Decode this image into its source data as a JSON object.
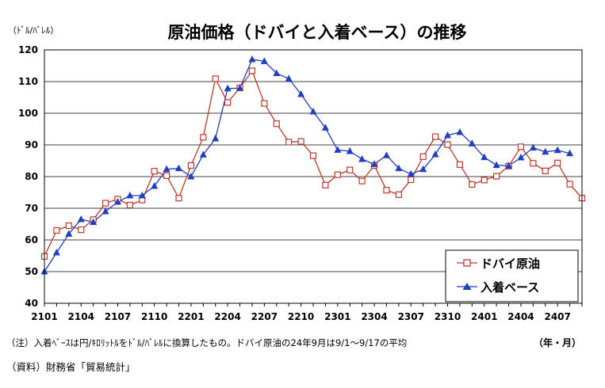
{
  "chart_data": {
    "type": "line",
    "title": "原油価格（ドバイと入着ベース）の推移",
    "ylabel": "（ﾄﾞﾙ/ﾊﾞﾚﾙ）",
    "xlabel": "（年・月）",
    "ylim": [
      40,
      120
    ],
    "yticks": [
      40,
      50,
      60,
      70,
      80,
      90,
      100,
      110,
      120
    ],
    "grid": true,
    "legend_position": "bottom-right",
    "x": [
      "2101",
      "2102",
      "2103",
      "2104",
      "2105",
      "2106",
      "2107",
      "2108",
      "2109",
      "2110",
      "2111",
      "2112",
      "2201",
      "2202",
      "2203",
      "2204",
      "2205",
      "2206",
      "2207",
      "2208",
      "2209",
      "2210",
      "2211",
      "2212",
      "2301",
      "2302",
      "2303",
      "2304",
      "2305",
      "2306",
      "2307",
      "2308",
      "2309",
      "2310",
      "2311",
      "2312",
      "2401",
      "2402",
      "2403",
      "2404",
      "2405",
      "2406",
      "2407",
      "2408",
      "2409"
    ],
    "xtick_labels": [
      "2101",
      "2104",
      "2107",
      "2110",
      "2201",
      "2204",
      "2207",
      "2210",
      "2301",
      "2304",
      "2307",
      "2310",
      "2401",
      "2404",
      "2407"
    ],
    "series": [
      {
        "name": "ドバイ原油",
        "color": "#c0392b",
        "marker": "square-open",
        "values": [
          54.8,
          63.0,
          64.5,
          63.2,
          66.4,
          71.6,
          72.9,
          71.0,
          72.6,
          81.7,
          80.3,
          73.2,
          83.5,
          92.4,
          110.9,
          103.4,
          108.0,
          113.4,
          103.1,
          96.7,
          90.9,
          91.1,
          86.6,
          77.3,
          80.6,
          82.1,
          78.6,
          83.5,
          75.7,
          74.3,
          79.0,
          86.3,
          92.6,
          90.1,
          83.8,
          77.5,
          78.9,
          80.1,
          83.3,
          89.4,
          84.2,
          81.8,
          84.3,
          77.6,
          73.2
        ]
      },
      {
        "name": "入着ベース",
        "color": "#1f3fc0",
        "marker": "triangle-filled",
        "values": [
          50.0,
          56.0,
          61.9,
          66.5,
          65.6,
          69.0,
          72.0,
          74.0,
          74.0,
          77.0,
          82.3,
          82.6,
          80.0,
          86.9,
          92.0,
          107.8,
          107.9,
          117.0,
          116.4,
          112.6,
          110.9,
          106.0,
          100.5,
          95.4,
          88.4,
          88.0,
          85.5,
          83.9,
          86.7,
          82.6,
          80.8,
          82.3,
          87.0,
          93.0,
          94.0,
          90.4,
          86.1,
          83.6,
          83.4,
          86.0,
          89.1,
          87.8,
          88.3,
          87.3,
          null
        ]
      }
    ]
  },
  "notes": {
    "note1": "（注）入着ﾍﾞｰｽは円/ｷﾛﾘｯﾄﾙをﾄﾞﾙ/ﾊﾞﾚﾙに換算したもの。ドバイ原油の24年9月は9/1～9/17の平均",
    "source": "（資料）財務省「貿易統計」"
  }
}
